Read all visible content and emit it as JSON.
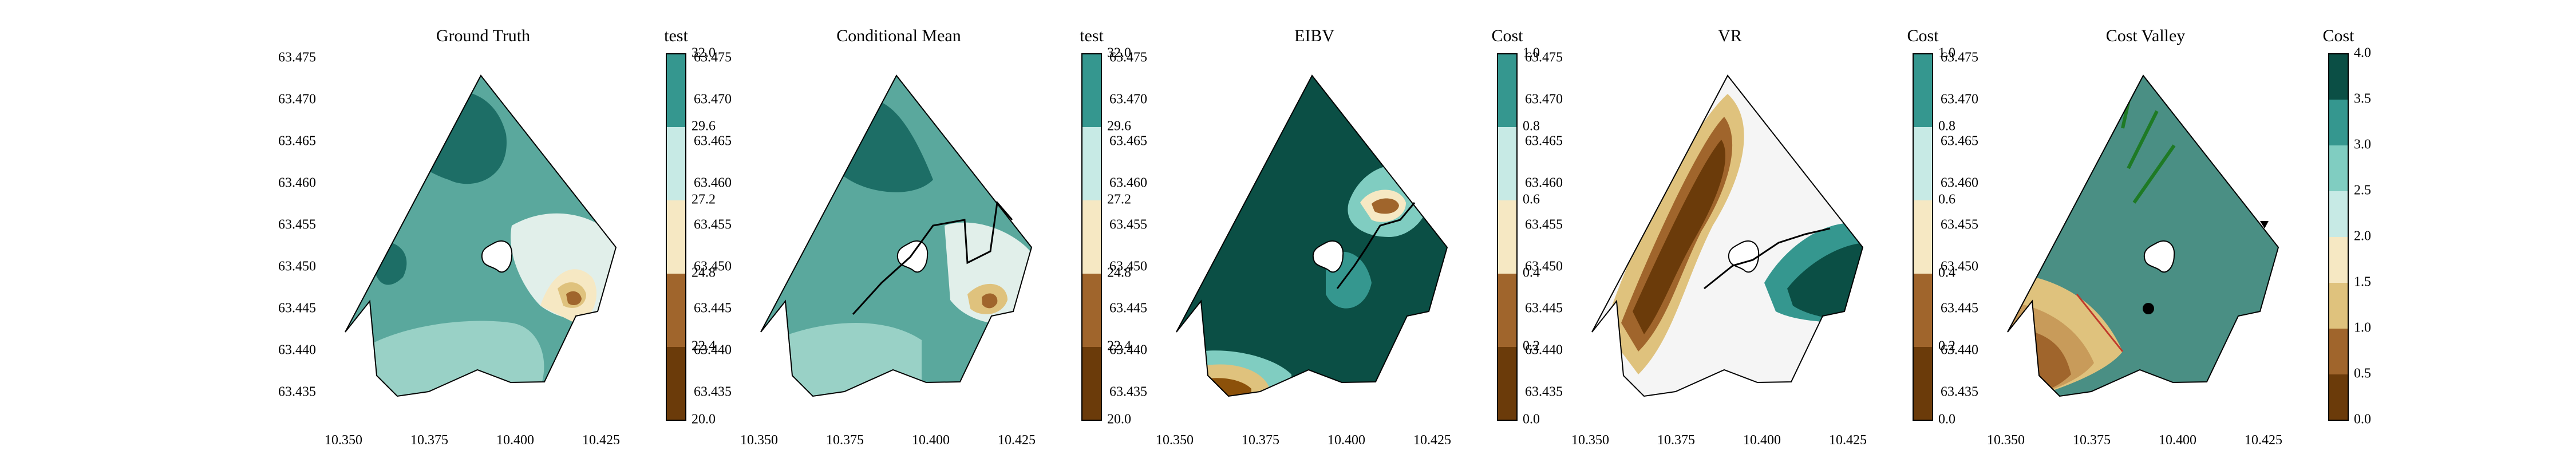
{
  "figure": {
    "x_ticks": [
      "10.350",
      "10.375",
      "10.400",
      "10.425"
    ],
    "y_ticks": [
      "63.475",
      "63.470",
      "63.465",
      "63.460",
      "63.455",
      "63.450",
      "63.445",
      "63.440",
      "63.435"
    ]
  },
  "chart_data": [
    {
      "type": "heatmap",
      "title": "Ground Truth",
      "colorbar_label": "test",
      "colorbar_ticks": [
        "20.0",
        "22.4",
        "24.8",
        "27.2",
        "29.6",
        "32.0"
      ],
      "colorbar_range": [
        20.0,
        32.0
      ],
      "colormap": "BrBG",
      "xlim": [
        10.34,
        10.44
      ],
      "ylim": [
        63.433,
        63.476
      ]
    },
    {
      "type": "heatmap",
      "title": "Conditional Mean",
      "colorbar_label": "test",
      "colorbar_ticks": [
        "20.0",
        "22.4",
        "24.8",
        "27.2",
        "29.6",
        "32.0"
      ],
      "colorbar_range": [
        20.0,
        32.0
      ],
      "colormap": "BrBG",
      "xlim": [
        10.34,
        10.44
      ],
      "ylim": [
        63.433,
        63.476
      ]
    },
    {
      "type": "heatmap",
      "title": "EIBV",
      "colorbar_label": "Cost",
      "colorbar_ticks": [
        "0.0",
        "0.2",
        "0.4",
        "0.6",
        "0.8",
        "1.0"
      ],
      "colorbar_range": [
        0.0,
        1.0
      ],
      "colormap": "BrBG",
      "xlim": [
        10.34,
        10.44
      ],
      "ylim": [
        63.433,
        63.476
      ]
    },
    {
      "type": "heatmap",
      "title": "VR",
      "colorbar_label": "Cost",
      "colorbar_ticks": [
        "0.0",
        "0.2",
        "0.4",
        "0.6",
        "0.8",
        "1.0"
      ],
      "colorbar_range": [
        0.0,
        1.0
      ],
      "colormap": "BrBG",
      "xlim": [
        10.34,
        10.44
      ],
      "ylim": [
        63.433,
        63.476
      ]
    },
    {
      "type": "heatmap",
      "title": "Cost Valley",
      "colorbar_label": "Cost",
      "colorbar_ticks": [
        "0.0",
        "0.5",
        "1.0",
        "1.5",
        "2.0",
        "2.5",
        "3.0",
        "3.5",
        "4.0"
      ],
      "colorbar_range": [
        0.0,
        4.0
      ],
      "colormap": "BrBG",
      "xlim": [
        10.34,
        10.44
      ],
      "ylim": [
        63.433,
        63.476
      ]
    }
  ]
}
